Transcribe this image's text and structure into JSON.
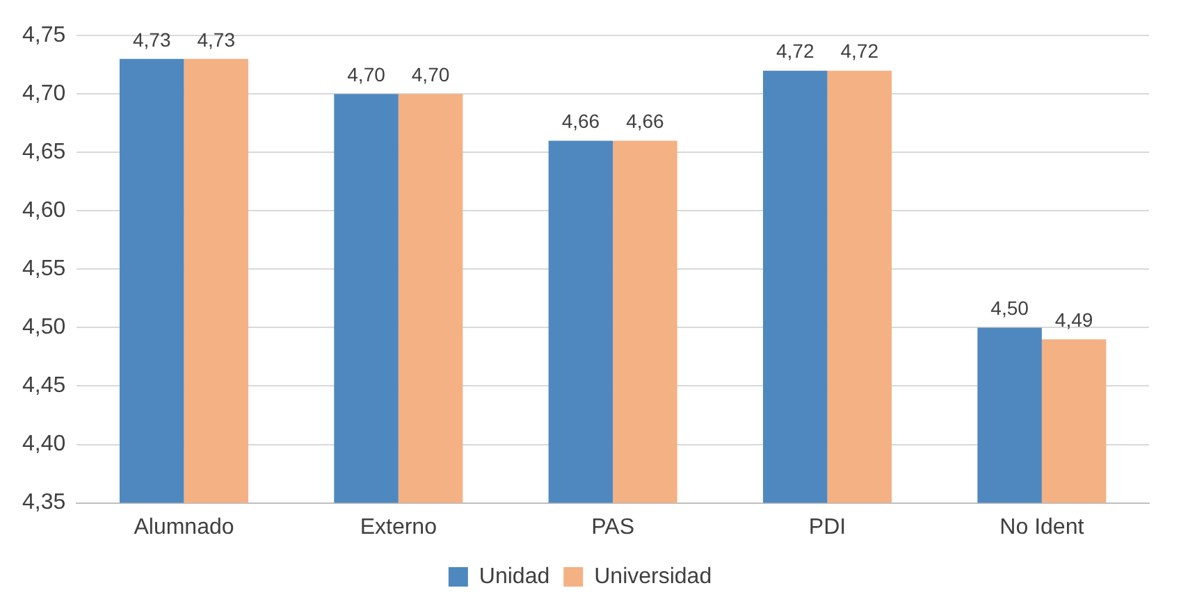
{
  "chart_data": {
    "type": "bar",
    "categories": [
      "Alumnado",
      "Externo",
      "PAS",
      "PDI",
      "No Ident"
    ],
    "series": [
      {
        "name": "Unidad",
        "color": "#4f88bf",
        "values": [
          4.73,
          4.7,
          4.66,
          4.72,
          4.5
        ],
        "value_labels": [
          "4,73",
          "4,70",
          "4,66",
          "4,72",
          "4,50"
        ]
      },
      {
        "name": "Universidad",
        "color": "#f4b183",
        "values": [
          4.73,
          4.7,
          4.66,
          4.72,
          4.49
        ],
        "value_labels": [
          "4,73",
          "4,70",
          "4,66",
          "4,72",
          "4,49"
        ]
      }
    ],
    "ylim": [
      4.35,
      4.75
    ],
    "yticks": [
      {
        "value": 4.35,
        "label": "4,35"
      },
      {
        "value": 4.4,
        "label": "4,40"
      },
      {
        "value": 4.45,
        "label": "4,45"
      },
      {
        "value": 4.5,
        "label": "4,50"
      },
      {
        "value": 4.55,
        "label": "4,55"
      },
      {
        "value": 4.6,
        "label": "4,60"
      },
      {
        "value": 4.65,
        "label": "4,65"
      },
      {
        "value": 4.7,
        "label": "4,70"
      },
      {
        "value": 4.75,
        "label": "4,75"
      }
    ],
    "grid": "y",
    "legend": "bottom"
  }
}
